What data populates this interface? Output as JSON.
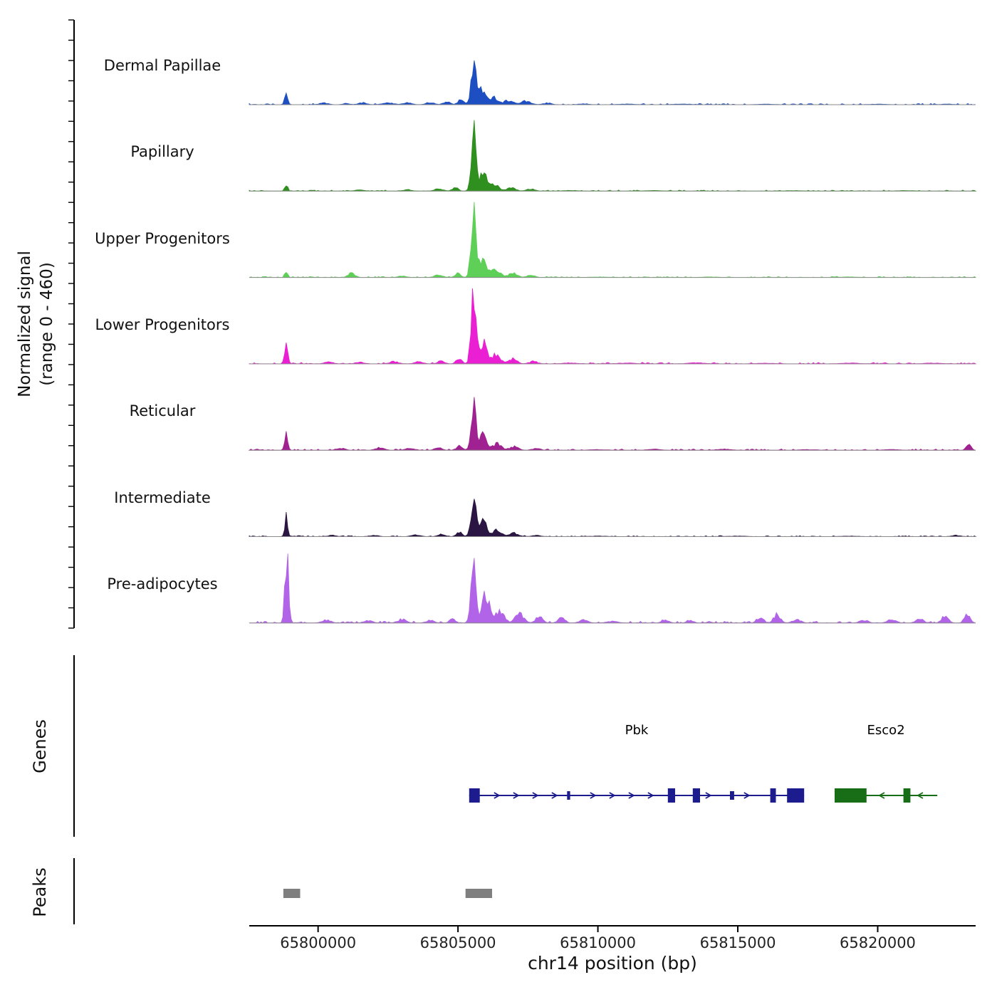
{
  "figure": {
    "ylabel_line1": "Normalized signal",
    "ylabel_line2": "(range 0 - 460)",
    "genes_label": "Genes",
    "peaks_label": "Peaks",
    "xlabel": "chr14 position (bp)"
  },
  "chart_data": {
    "type": "area",
    "title": "",
    "x_axis": {
      "label": "chr14 position (bp)",
      "chromosome": "chr14",
      "min": 65797540,
      "max": 65823500,
      "ticks": [
        65800000,
        65805000,
        65810000,
        65815000,
        65820000
      ]
    },
    "y_axis": {
      "label": "Normalized signal (range 0 - 460)",
      "min": 0,
      "max": 460
    },
    "tracks": [
      {
        "label": "Dermal Papillae",
        "color": "#1e4fc2",
        "seed": 11,
        "noise": 6,
        "peaks": [
          [
            65798860,
            55,
            58
          ],
          [
            65800200,
            150,
            10
          ],
          [
            65801000,
            120,
            8
          ],
          [
            65801600,
            150,
            12
          ],
          [
            65802500,
            200,
            10
          ],
          [
            65803200,
            150,
            12
          ],
          [
            65804000,
            150,
            14
          ],
          [
            65804600,
            120,
            18
          ],
          [
            65805100,
            100,
            30
          ],
          [
            65805560,
            90,
            230
          ],
          [
            65805850,
            120,
            90
          ],
          [
            65806250,
            150,
            45
          ],
          [
            65806800,
            150,
            28
          ],
          [
            65807400,
            180,
            22
          ],
          [
            65808200,
            150,
            10
          ],
          [
            65809500,
            200,
            5
          ],
          [
            65811000,
            300,
            4
          ],
          [
            65813000,
            300,
            4
          ],
          [
            65816000,
            300,
            3
          ],
          [
            65820000,
            300,
            3
          ],
          [
            65822500,
            200,
            4
          ]
        ]
      },
      {
        "label": "Papillary",
        "color": "#2f8f1f",
        "seed": 22,
        "noise": 5,
        "peaks": [
          [
            65798860,
            50,
            45
          ],
          [
            65801500,
            200,
            6
          ],
          [
            65803200,
            150,
            8
          ],
          [
            65804300,
            150,
            14
          ],
          [
            65804900,
            100,
            22
          ],
          [
            65805560,
            85,
            390
          ],
          [
            65805900,
            120,
            110
          ],
          [
            65806300,
            150,
            45
          ],
          [
            65806900,
            150,
            25
          ],
          [
            65807600,
            150,
            12
          ],
          [
            65809000,
            250,
            4
          ],
          [
            65812000,
            300,
            3
          ],
          [
            65817000,
            300,
            3
          ],
          [
            65821000,
            300,
            3
          ]
        ]
      },
      {
        "label": "Upper Progenitors",
        "color": "#5ecf57",
        "seed": 33,
        "noise": 5,
        "peaks": [
          [
            65798860,
            50,
            38
          ],
          [
            65801200,
            120,
            26
          ],
          [
            65803000,
            150,
            8
          ],
          [
            65804300,
            150,
            14
          ],
          [
            65805000,
            100,
            25
          ],
          [
            65805560,
            85,
            450
          ],
          [
            65805900,
            120,
            120
          ],
          [
            65806350,
            150,
            50
          ],
          [
            65806950,
            150,
            28
          ],
          [
            65807600,
            150,
            12
          ],
          [
            65810000,
            300,
            3
          ],
          [
            65814000,
            300,
            3
          ],
          [
            65819000,
            300,
            3
          ]
        ]
      },
      {
        "label": "Lower Progenitors",
        "color": "#ea1ed2",
        "seed": 44,
        "noise": 7,
        "peaks": [
          [
            65798860,
            60,
            100
          ],
          [
            65800400,
            150,
            12
          ],
          [
            65801500,
            150,
            10
          ],
          [
            65802700,
            150,
            14
          ],
          [
            65803600,
            150,
            12
          ],
          [
            65804400,
            120,
            20
          ],
          [
            65805050,
            100,
            35
          ],
          [
            65805560,
            85,
            460
          ],
          [
            65805900,
            120,
            130
          ],
          [
            65806350,
            150,
            55
          ],
          [
            65806950,
            150,
            30
          ],
          [
            65807700,
            150,
            15
          ],
          [
            65809000,
            250,
            6
          ],
          [
            65811000,
            300,
            5
          ],
          [
            65813500,
            300,
            6
          ],
          [
            65816000,
            300,
            4
          ],
          [
            65819000,
            300,
            5
          ],
          [
            65822000,
            300,
            5
          ]
        ]
      },
      {
        "label": "Reticular",
        "color": "#a02191",
        "seed": 55,
        "noise": 6,
        "peaks": [
          [
            65798860,
            55,
            92
          ],
          [
            65800800,
            150,
            12
          ],
          [
            65802200,
            150,
            15
          ],
          [
            65803300,
            150,
            12
          ],
          [
            65804300,
            120,
            18
          ],
          [
            65805050,
            100,
            28
          ],
          [
            65805560,
            90,
            270
          ],
          [
            65805900,
            120,
            95
          ],
          [
            65806400,
            150,
            40
          ],
          [
            65807000,
            150,
            22
          ],
          [
            65807800,
            150,
            10
          ],
          [
            65810000,
            300,
            4
          ],
          [
            65812000,
            250,
            6
          ],
          [
            65814500,
            250,
            7
          ],
          [
            65817500,
            300,
            4
          ],
          [
            65820500,
            300,
            4
          ],
          [
            65823250,
            80,
            38
          ]
        ]
      },
      {
        "label": "Intermediate",
        "color": "#2b1542",
        "seed": 66,
        "noise": 5,
        "peaks": [
          [
            65798860,
            50,
            118
          ],
          [
            65800500,
            150,
            8
          ],
          [
            65802000,
            150,
            8
          ],
          [
            65803500,
            150,
            10
          ],
          [
            65804400,
            120,
            14
          ],
          [
            65805050,
            100,
            28
          ],
          [
            65805560,
            90,
            235
          ],
          [
            65805900,
            120,
            90
          ],
          [
            65806400,
            150,
            40
          ],
          [
            65807000,
            150,
            20
          ],
          [
            65807800,
            150,
            8
          ],
          [
            65810000,
            300,
            3
          ],
          [
            65815000,
            300,
            3
          ],
          [
            65819000,
            300,
            3
          ],
          [
            65822800,
            150,
            8
          ]
        ]
      },
      {
        "label": "Pre-adipocytes",
        "color": "#b264e8",
        "seed": 77,
        "noise": 9,
        "peaks": [
          [
            65798880,
            65,
            400
          ],
          [
            65800300,
            150,
            18
          ],
          [
            65801800,
            150,
            16
          ],
          [
            65803000,
            150,
            22
          ],
          [
            65804000,
            130,
            18
          ],
          [
            65804800,
            100,
            28
          ],
          [
            65805560,
            90,
            430
          ],
          [
            65806000,
            130,
            170
          ],
          [
            65806500,
            150,
            70
          ],
          [
            65807200,
            150,
            55
          ],
          [
            65807900,
            130,
            38
          ],
          [
            65808700,
            130,
            28
          ],
          [
            65809500,
            150,
            18
          ],
          [
            65810500,
            200,
            10
          ],
          [
            65812400,
            120,
            22
          ],
          [
            65813300,
            120,
            18
          ],
          [
            65815800,
            120,
            35
          ],
          [
            65816400,
            120,
            50
          ],
          [
            65817100,
            150,
            20
          ],
          [
            65819500,
            150,
            18
          ],
          [
            65820500,
            150,
            22
          ],
          [
            65821500,
            130,
            28
          ],
          [
            65822400,
            120,
            40
          ],
          [
            65823200,
            100,
            55
          ]
        ]
      }
    ],
    "genes": [
      {
        "name": "Pbk",
        "color": "#1c1c8f",
        "strand": "+",
        "start": 65805400,
        "end": 65817370,
        "exons": [
          [
            65805400,
            65805780,
            2
          ],
          [
            65808900,
            65809010,
            1
          ],
          [
            65812500,
            65812760,
            2
          ],
          [
            65813390,
            65813650,
            2
          ],
          [
            65814720,
            65814870,
            1
          ],
          [
            65816160,
            65816360,
            2
          ],
          [
            65816760,
            65817370,
            2
          ]
        ]
      },
      {
        "name": "Esco2",
        "color": "#176e17",
        "strand": "-",
        "start": 65818460,
        "end": 65822130,
        "exons": [
          [
            65818460,
            65819600,
            2
          ],
          [
            65820920,
            65821170,
            2
          ]
        ]
      }
    ],
    "peak_regions": [
      [
        65798760,
        65799360
      ],
      [
        65805270,
        65806220
      ]
    ],
    "peak_color": "#7f7f7f"
  }
}
